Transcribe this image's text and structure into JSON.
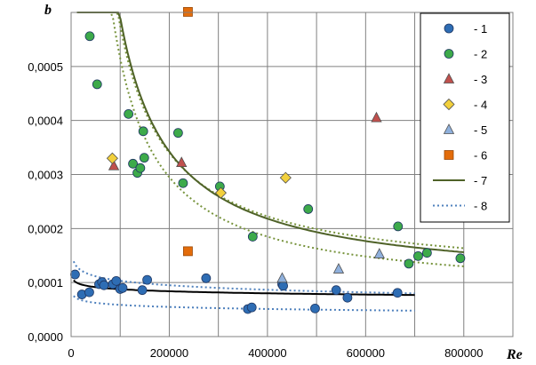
{
  "chart_data": {
    "type": "scatter",
    "xlabel": "Re",
    "ylabel": "b",
    "xlim": [
      0,
      900000
    ],
    "ylim": [
      0,
      0.0006
    ],
    "grid": true,
    "legend_position": "top-right",
    "x_ticks": [
      "0",
      "200000",
      "400000",
      "600000",
      "800000"
    ],
    "y_ticks": [
      "0,0000",
      "0,0001",
      "0,0002",
      "0,0003",
      "0,0004",
      "0,0005"
    ],
    "series": [
      {
        "name": "- 1",
        "marker": "circle",
        "color": "#2E6DB4",
        "points": [
          [
            8000,
            0.000115
          ],
          [
            22000,
            7.8e-05
          ],
          [
            37000,
            8.2e-05
          ],
          [
            57000,
            9.7e-05
          ],
          [
            63000,
            0.000101
          ],
          [
            67000,
            9.5e-05
          ],
          [
            85000,
            9.7e-05
          ],
          [
            92000,
            0.000103
          ],
          [
            100000,
            8.8e-05
          ],
          [
            105000,
            9e-05
          ],
          [
            145000,
            8.6e-05
          ],
          [
            155000,
            0.000105
          ],
          [
            275000,
            0.000108
          ],
          [
            360000,
            5.1e-05
          ],
          [
            368000,
            5.4e-05
          ],
          [
            430000,
            9.7e-05
          ],
          [
            432000,
            9.4e-05
          ],
          [
            497000,
            5.2e-05
          ],
          [
            540000,
            8.6e-05
          ],
          [
            563000,
            7.2e-05
          ],
          [
            665000,
            8.1e-05
          ]
        ]
      },
      {
        "name": "- 2",
        "marker": "circle",
        "color": "#3DAA4A",
        "points": [
          [
            38000,
            0.000556
          ],
          [
            53000,
            0.000467
          ],
          [
            117000,
            0.000412
          ],
          [
            126000,
            0.00032
          ],
          [
            135000,
            0.000303
          ],
          [
            141000,
            0.000312
          ],
          [
            147000,
            0.00038
          ],
          [
            149000,
            0.000331
          ],
          [
            218000,
            0.000377
          ],
          [
            228000,
            0.000284
          ],
          [
            303000,
            0.000278
          ],
          [
            370000,
            0.000185
          ],
          [
            483000,
            0.000236
          ],
          [
            666000,
            0.000204
          ],
          [
            688000,
            0.000135
          ],
          [
            707000,
            0.000149
          ],
          [
            725000,
            0.000155
          ],
          [
            793000,
            0.000145
          ]
        ]
      },
      {
        "name": "- 3",
        "marker": "triangle",
        "color": "#C0504D",
        "points": [
          [
            87000,
            0.000316
          ],
          [
            225000,
            0.000322
          ],
          [
            622000,
            0.000405
          ]
        ]
      },
      {
        "name": "- 4",
        "marker": "diamond",
        "color": "#F2D03C",
        "points": [
          [
            84000,
            0.00033
          ],
          [
            305000,
            0.000266
          ],
          [
            437000,
            0.000294
          ]
        ]
      },
      {
        "name": "- 5",
        "marker": "triangle",
        "color": "#8FB0DC",
        "points": [
          [
            430000,
            0.000108
          ],
          [
            545000,
            0.000125
          ],
          [
            628000,
            0.000153
          ]
        ]
      },
      {
        "name": "- 6",
        "marker": "square",
        "color": "#E36C0A",
        "points": [
          [
            238000,
            0.000601
          ],
          [
            238000,
            0.000158
          ]
        ]
      },
      {
        "name": "- 7",
        "marker": "line",
        "color": "#4F6228",
        "curve": "b = 0.000094 + 49.7/Re",
        "x_range": [
          12000,
          800000
        ]
      },
      {
        "name": "- 8",
        "marker": "dotted-line",
        "color": "#4F81BD",
        "curves": [
          {
            "color": "#77933C",
            "fn": "b = 0.000105 + 47/Re",
            "x_range": [
              12000,
              800000
            ]
          },
          {
            "color": "#77933C",
            "fn": "b = 0.000075 + 44/Re",
            "x_range": [
              12000,
              800000
            ]
          },
          {
            "color": "#4F81BD",
            "fn": "b = 0.000095 + 0.000012*(ln(200000) - ln(Re))",
            "x_range": [
              5000,
              700000
            ]
          },
          {
            "color": "#4F81BD",
            "fn": "b = 0.000048 + 0.0000055*(ln(700000) - ln(Re))",
            "x_range": [
              5000,
              700000
            ]
          }
        ]
      },
      {
        "name": "",
        "marker": "line",
        "color": "#000000",
        "curve": "b = 0.000077 + 0.0000055*(ln(700000) - ln(Re))",
        "x_range": [
          5000,
          700000
        ]
      }
    ]
  }
}
